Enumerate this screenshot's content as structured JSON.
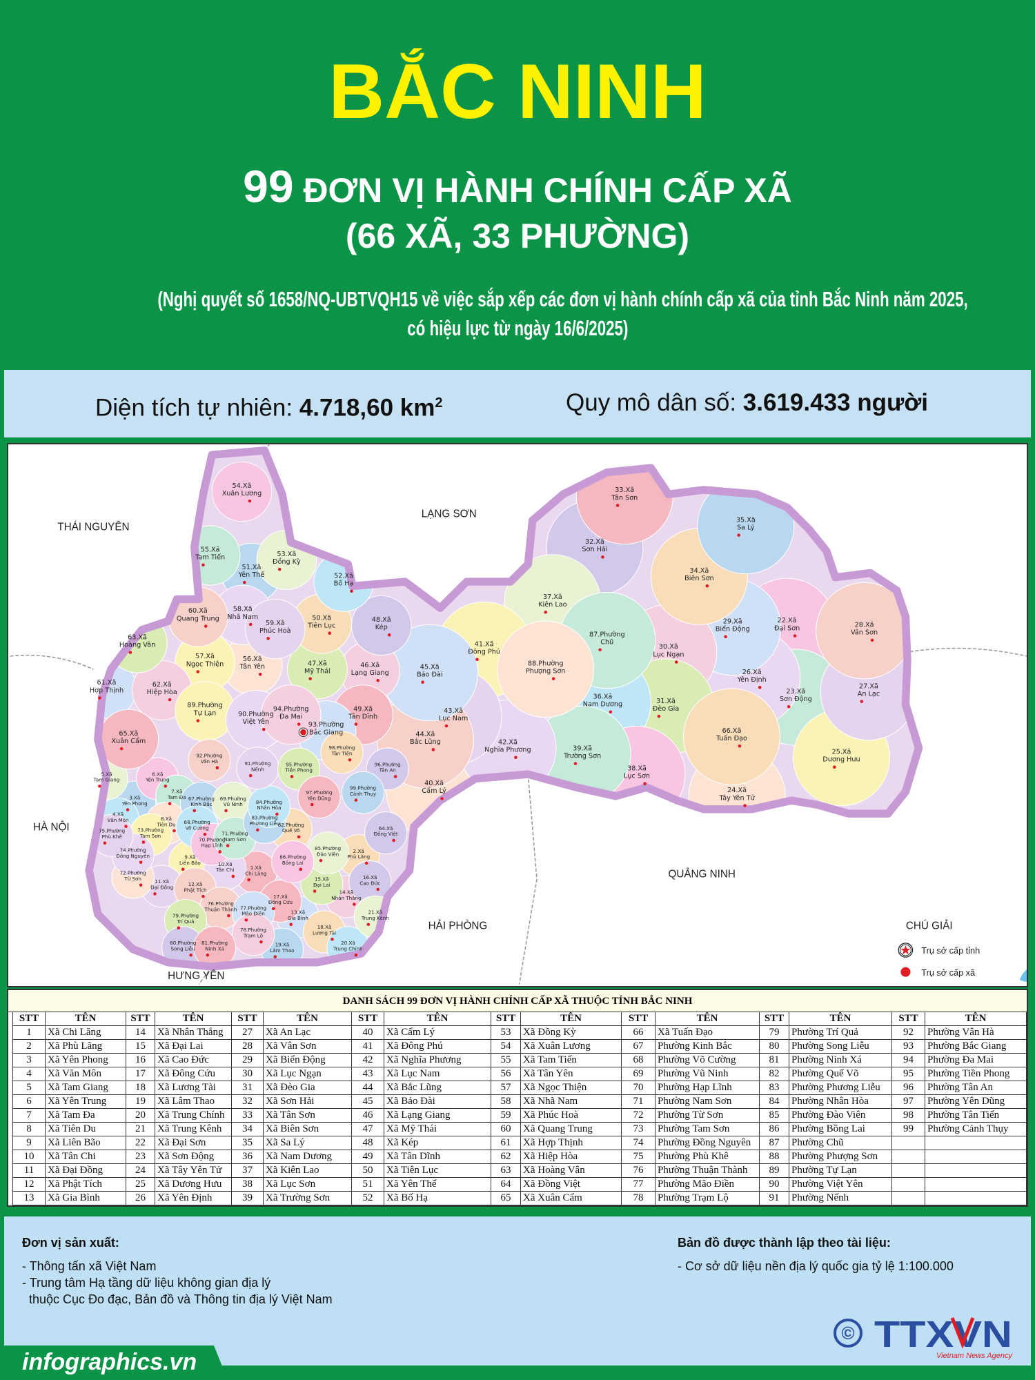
{
  "header": {
    "title": "BẮC NINH",
    "subtitle_number": "99",
    "subtitle_text": "ĐƠN VỊ HÀNH CHÍNH CẤP XÃ",
    "subtitle_breakdown": "(66 XÃ, 33 PHƯỜNG)",
    "note_line1": "(Nghị quyết số 1658/NQ-UBTVQH15 về việc sắp xếp các đơn vị hành chính cấp xã của tỉnh Bắc Ninh năm 2025,",
    "note_line2": "có hiệu lực từ ngày 16/6/2025)"
  },
  "stats": {
    "area_label": "Diện tích tự nhiên: ",
    "area_value": "4.718,60 km",
    "area_unit_sup": "2",
    "population_label": "Quy mô dân số: ",
    "population_value": "3.619.433 người"
  },
  "map": {
    "neighbors": [
      "THÁI NGUYÊN",
      "LẠNG SƠN",
      "HÀ NỘI",
      "QUẢNG NINH",
      "HẢI PHÒNG",
      "HƯNG YÊN"
    ],
    "provincial_hq_unit": 93,
    "legend": {
      "title": "CHÚ GIẢI",
      "items": [
        {
          "icon": "star-in-circle-icon",
          "label": "Trụ sở cấp tỉnh"
        },
        {
          "icon": "red-dot-icon",
          "label": "Trụ sở cấp xã"
        }
      ]
    },
    "colors": {
      "outline": "#c79ad6",
      "dot": "#e01b24",
      "star": "#e01b24"
    }
  },
  "table": {
    "title": "DANH SÁCH 99 ĐƠN VỊ HÀNH CHÍNH CẤP XÃ THUỘC TỈNH BẮC NINH",
    "col_stt": "STT",
    "col_name": "TÊN",
    "items": [
      "Xã Chi Lăng",
      "Xã Phù Lãng",
      "Xã Yên Phong",
      "Xã Văn Môn",
      "Xã Tam Giang",
      "Xã Yên Trung",
      "Xã Tam Đa",
      "Xã Tiên Du",
      "Xã Liên Bão",
      "Xã Tân Chi",
      "Xã Đại Đồng",
      "Xã Phật Tích",
      "Xã Gia Bình",
      "Xã Nhân Thắng",
      "Xã Đại Lai",
      "Xã Cao Đức",
      "Xã Đông Cứu",
      "Xã Lương Tài",
      "Xã Lâm Thao",
      "Xã Trung Chính",
      "Xã Trung Kênh",
      "Xã Đại Sơn",
      "Xã Sơn Động",
      "Xã Tây Yên Tử",
      "Xã Dương Hưu",
      "Xã Yên Định",
      "Xã An Lạc",
      "Xã Vân Sơn",
      "Xã Biển Động",
      "Xã Lục Ngạn",
      "Xã Đèo Gia",
      "Xã Sơn Hải",
      "Xã Tân Sơn",
      "Xã Biên Sơn",
      "Xã Sa Lý",
      "Xã Nam Dương",
      "Xã Kiên Lao",
      "Xã Lục Sơn",
      "Xã Trường Sơn",
      "Xã Cẩm Lý",
      "Xã Đông Phú",
      "Xã Nghĩa Phương",
      "Xã Lục Nam",
      "Xã Bắc Lũng",
      "Xã Bảo Đài",
      "Xã Lạng Giang",
      "Xã Mỹ Thái",
      "Xã Kép",
      "Xã Tân Dĩnh",
      "Xã Tiên Lục",
      "Xã Yên Thế",
      "Xã Bố Hạ",
      "Xã Đồng Kỳ",
      "Xã Xuân Lương",
      "Xã Tam Tiến",
      "Xã Tân Yên",
      "Xã Ngọc Thiện",
      "Xã Nhã Nam",
      "Xã Phúc Hoà",
      "Xã Quang Trung",
      "Xã Hợp Thịnh",
      "Xã Hiệp Hòa",
      "Xã Hoàng Vân",
      "Xã Đồng Việt",
      "Xã Xuân Cẩm",
      "Xã Tuấn Đạo",
      "Phường Kinh Bắc",
      "Phường Võ Cường",
      "Phường Vũ Ninh",
      "Phường Hạp Lĩnh",
      "Phường Nam Sơn",
      "Phường Từ Sơn",
      "Phường Tam Sơn",
      "Phường Đồng Nguyên",
      "Phường Phù Khê",
      "Phường Thuận Thành",
      "Phường Mão Điền",
      "Phường Trạm Lộ",
      "Phường Trí Quả",
      "Phường Song Liễu",
      "Phường Ninh Xá",
      "Phường Quế Võ",
      "Phường Phương Liễu",
      "Phường Nhân Hòa",
      "Phường Đào Viên",
      "Phường Bồng Lai",
      "Phường Chũ",
      "Phường Phượng Sơn",
      "Phường Tự Lạn",
      "Phường Việt Yên",
      "Phường Nếnh",
      "Phường Vân Hà",
      "Phường Bắc Giang",
      "Phường Đa Mai",
      "Phường Tiền Phong",
      "Phường Tân An",
      "Phường Yên Dũng",
      "Phường Tân Tiến",
      "Phường Cảnh Thụy"
    ]
  },
  "footer": {
    "producer_title": "Đơn vị sản xuất:",
    "producer_lines": [
      "- Thông tấn xã Việt Nam",
      "- Trung tâm Hạ tầng dữ liệu không gian địa lý",
      "  thuộc Cục Đo đạc, Bản đồ và Thông tin địa lý Việt Nam"
    ],
    "source_title": "Bản đồ được thành lập theo tài liệu:",
    "source_lines": [
      "- Cơ sở dữ liệu nền địa lý quốc gia tỷ lệ 1:100.000"
    ],
    "website": "infographics.vn",
    "logo_text": "TTXVN",
    "logo_subtext": "Vietnam News Agency",
    "copyright_symbol": "©",
    "colors": {
      "green": "#0b9447",
      "logo_blue": "#2a4fa0",
      "logo_red": "#e01b24"
    }
  }
}
